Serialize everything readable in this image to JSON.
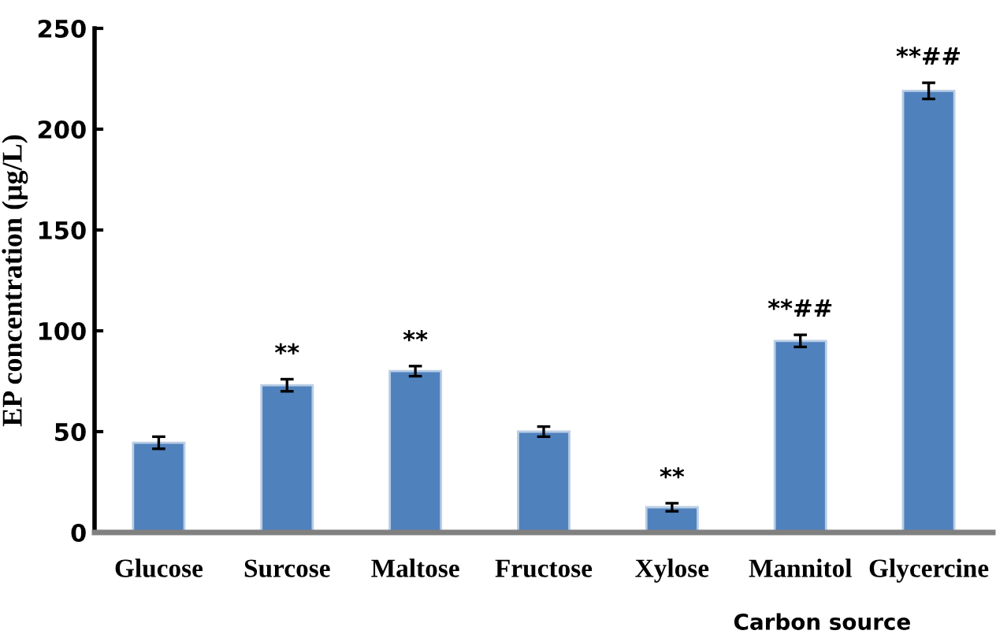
{
  "chart_data": {
    "type": "bar",
    "xlabel": "Carbon source",
    "ylabel": "EP concentration (μg/L)",
    "categories": [
      "Glucose",
      "Surcose",
      "Maltose",
      "Fructose",
      "Xylose",
      "Mannitol",
      "Glycercine"
    ],
    "values": [
      44.5,
      73,
      80,
      50,
      12.5,
      95,
      219
    ],
    "errors": [
      3,
      3,
      2.5,
      2.5,
      2,
      3,
      4
    ],
    "color": "#4f81bd",
    "ylim": [
      0,
      250
    ],
    "yticks": [
      0,
      50,
      100,
      150,
      200,
      250
    ],
    "grid": false,
    "legend": false,
    "annotations": [
      {
        "text": "**",
        "x": "Surcose",
        "y": 76
      },
      {
        "text": "**",
        "x": "Maltose",
        "y": 82.5
      },
      {
        "text": "**",
        "x": "Xylose",
        "y": 14.5
      },
      {
        "text": "**##",
        "x": "Mannitol",
        "y": 98
      },
      {
        "text": "**##",
        "x": "Glycercine",
        "y": 223
      }
    ]
  }
}
